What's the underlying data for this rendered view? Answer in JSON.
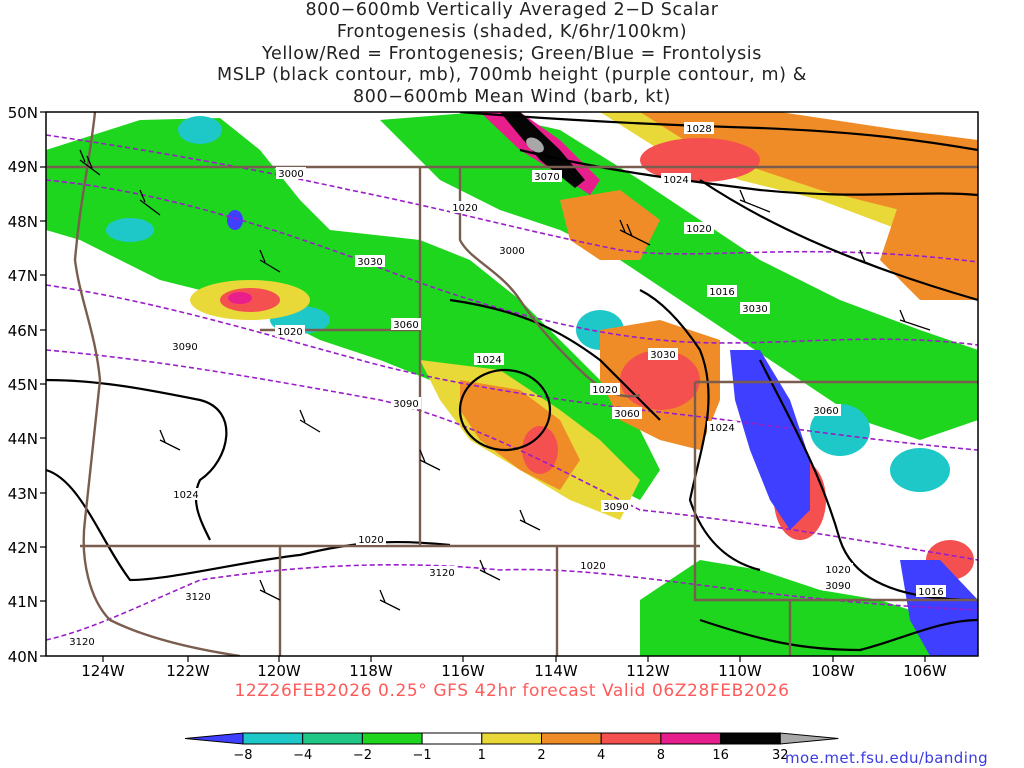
{
  "title_lines": [
    "800−600mb Vertically Averaged 2−D Scalar",
    "Frontogenesis (shaded, K/6hr/100km)",
    "Yellow/Red = Frontogenesis;  Green/Blue = Frontolysis",
    "MSLP (black contour, mb), 700mb height (purple contour, m) &",
    "800−600mb Mean Wind (barb, kt)"
  ],
  "lat_labels": [
    "50N",
    "49N",
    "48N",
    "47N",
    "46N",
    "45N",
    "44N",
    "43N",
    "42N",
    "41N",
    "40N"
  ],
  "lon_labels": [
    "124W",
    "122W",
    "120W",
    "118W",
    "116W",
    "114W",
    "112W",
    "110W",
    "108W",
    "106W"
  ],
  "valid_text": "12Z26FEB2026 0.25° GFS 42hr forecast Valid 06Z28FEB2026",
  "colorbar": {
    "labels": [
      "−8",
      "−4",
      "−2",
      "−1",
      "1",
      "2",
      "4",
      "8",
      "16",
      "32"
    ],
    "colors": [
      "#3f3fff",
      "#1ec8c8",
      "#20c888",
      "#1ed61e",
      "#ffffff",
      "#e8d838",
      "#f08c28",
      "#f55050",
      "#e81e8c",
      "#050505",
      "#a8a8a8"
    ]
  },
  "contours": {
    "mslp_labels": [
      "1028",
      "1024",
      "1020",
      "1020",
      "1020",
      "1016",
      "1024",
      "1020",
      "1020",
      "1024",
      "1024",
      "1020",
      "1020",
      "1016"
    ],
    "height_labels": [
      "3000",
      "3030",
      "3000",
      "3060",
      "3090",
      "3030",
      "3090",
      "3060",
      "3030",
      "3060",
      "3120",
      "3090",
      "3120",
      "3090",
      "3120",
      "3070"
    ]
  },
  "colors": {
    "state_border": "#7a5d4f",
    "mslp_contour": "#000000",
    "height_contour": "#9a1ec8"
  },
  "credit": "moe.met.fsu.edu/banding"
}
